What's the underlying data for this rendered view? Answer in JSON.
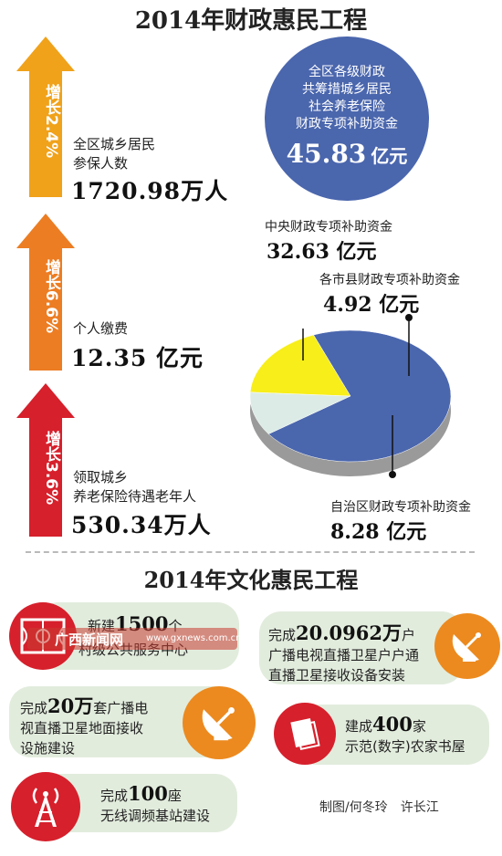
{
  "top_title": "2014年财政惠民工程",
  "left_items": [
    {
      "growth": "增长2.4%",
      "label_line1": "全区城乡居民",
      "label_line2": "参保人数",
      "value": "1720.98万人",
      "color": "#f0a21b"
    },
    {
      "growth": "增长6.6%",
      "label_line1": "个人缴费",
      "label_line2": "",
      "value": "12.35 亿元",
      "color": "#ec7d23"
    },
    {
      "growth": "增长3.6%",
      "label_line1": "领取城乡",
      "label_line2": "养老保险待遇老年人",
      "value": "530.34万人",
      "color": "#d6202c"
    }
  ],
  "fund_circle": {
    "line1": "全区各级财政",
    "line2": "共筹措城乡居民",
    "line3": "社会养老保险",
    "line4": "财政专项补助资金",
    "value": "45.83",
    "unit": "亿元",
    "color": "#4a66ad"
  },
  "chart_data": {
    "type": "pie",
    "title": "",
    "slices": [
      {
        "label": "中央财政专项补助资金",
        "value": 32.63,
        "display": "32.63 亿元",
        "color": "#4a66ad"
      },
      {
        "label": "各市县财政专项补助资金",
        "value": 4.92,
        "display": "4.92 亿元",
        "color": "#dcebe6"
      },
      {
        "label": "自治区财政专项补助资金",
        "value": 8.28,
        "display": "8.28 亿元",
        "color": "#f7ee1a"
      }
    ]
  },
  "bottom_title": "2014年文化惠民工程",
  "culture_items": [
    {
      "prefix": "新建",
      "num": "1500",
      "suffix": "个",
      "line2": "村级公共服务中心",
      "icon": "basketball-court-icon"
    },
    {
      "prefix": "完成",
      "num": "20.0962万",
      "suffix": "户",
      "line2": "广播电视直播卫星户户通",
      "line3": "直播卫星接收设备安装",
      "icon": "satellite-dish-icon"
    },
    {
      "prefix": "完成",
      "num": "20万",
      "suffix": "套广播电",
      "line2": "视直播卫星地面接收",
      "line3": "设施建设",
      "icon": "satellite-dish-icon"
    },
    {
      "prefix": "建成",
      "num": "400",
      "suffix": "家",
      "line2": "示范(数字)农家书屋",
      "icon": "book-icon"
    },
    {
      "prefix": "完成",
      "num": "100",
      "suffix": "座",
      "line2": "无线调频基站建设",
      "icon": "radio-tower-icon"
    }
  ],
  "watermark": {
    "site": "广西新闻网",
    "url": "www.gxnews.com.cn"
  },
  "credit": "制图/何冬玲　许长江",
  "colors": {
    "orange": "#ec8a1f",
    "red": "#d6202c",
    "pill_bg": "#e2ecdd"
  }
}
